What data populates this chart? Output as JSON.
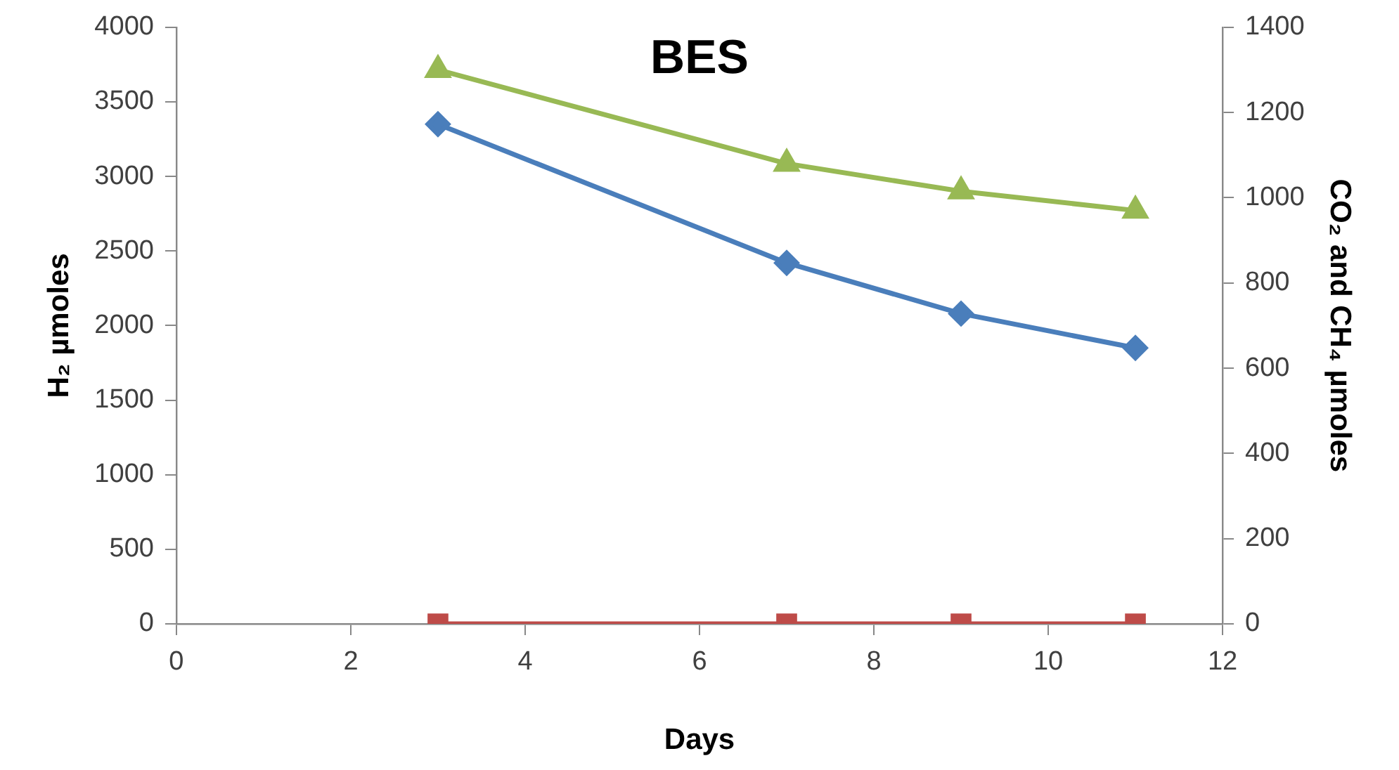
{
  "chart_data": {
    "type": "line",
    "title": "BES",
    "xlabel": "Days",
    "ylabel": "H₂ µmoles",
    "y2label": "CO₂ and CH₄ µmoles",
    "x": [
      3,
      7,
      9,
      11
    ],
    "xlim": [
      0,
      12
    ],
    "xticks": [
      0,
      2,
      4,
      6,
      8,
      10,
      12
    ],
    "ylim": [
      0,
      4000
    ],
    "yticks": [
      0,
      500,
      1000,
      1500,
      2000,
      2500,
      3000,
      3500,
      4000
    ],
    "y2lim": [
      0,
      1400
    ],
    "y2ticks": [
      0,
      200,
      400,
      600,
      800,
      1000,
      1200,
      1400
    ],
    "grid": false,
    "legend": false,
    "line_style": "solid",
    "series": [
      {
        "color": "#4a7ebb",
        "values": [
          3350,
          2420,
          2080,
          1850
        ],
        "marker": "diamond"
      },
      {
        "color": "#98b954",
        "values": [
          1300,
          1080,
          1015,
          970
        ],
        "axis": "y2",
        "marker": "triangle"
      },
      {
        "color": "#be4b48",
        "values": [
          0,
          0,
          0,
          0
        ],
        "axis": "y2",
        "marker": "square"
      }
    ]
  }
}
